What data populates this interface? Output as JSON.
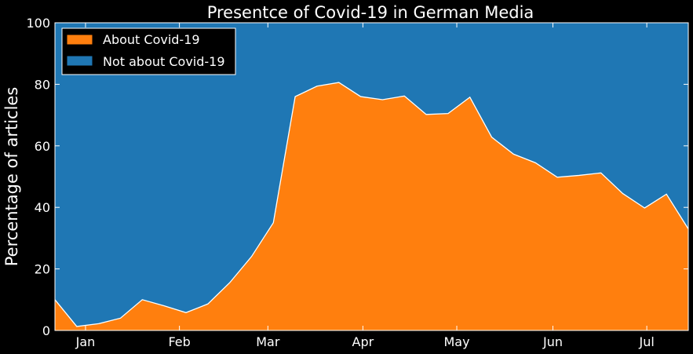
{
  "chart_data": {
    "type": "area",
    "stacked": true,
    "title": "Presentce of Covid-19 in German Media",
    "xlabel": "",
    "ylabel": "Percentage of articles",
    "ylim": [
      0,
      100
    ],
    "yticks": [
      0,
      20,
      40,
      60,
      80,
      100
    ],
    "xticks": [
      "Jan",
      "Feb",
      "Mar",
      "Apr",
      "May",
      "Jun",
      "Jul"
    ],
    "legend_position": "top-left",
    "grid": false,
    "x": [
      1,
      2,
      3,
      4,
      5,
      6,
      7,
      8,
      9,
      10,
      11,
      12,
      13,
      14,
      15,
      16,
      17,
      18,
      19,
      20,
      21,
      22,
      23,
      24,
      25,
      26,
      27,
      28,
      29,
      30
    ],
    "series": [
      {
        "name": "About Covid-19",
        "color": "#ff7f0e",
        "values": [
          10.0,
          1.3,
          2.2,
          4.0,
          10.0,
          8.0,
          5.8,
          8.6,
          15.5,
          24.0,
          35.0,
          76.0,
          79.4,
          80.6,
          76.0,
          75.0,
          76.2,
          70.2,
          70.5,
          75.8,
          62.8,
          57.3,
          54.5,
          49.8,
          50.4,
          51.2,
          44.5,
          39.8,
          44.3,
          33.0
        ]
      },
      {
        "name": "Not about Covid-19",
        "color": "#1f77b4",
        "values": [
          90.0,
          98.7,
          97.8,
          96.0,
          90.0,
          92.0,
          94.2,
          91.4,
          84.5,
          76.0,
          65.0,
          24.0,
          20.6,
          19.4,
          24.0,
          25.0,
          23.8,
          29.8,
          29.5,
          24.2,
          37.2,
          42.7,
          45.5,
          50.2,
          49.6,
          48.8,
          55.5,
          60.2,
          55.7,
          67.0
        ]
      }
    ]
  }
}
